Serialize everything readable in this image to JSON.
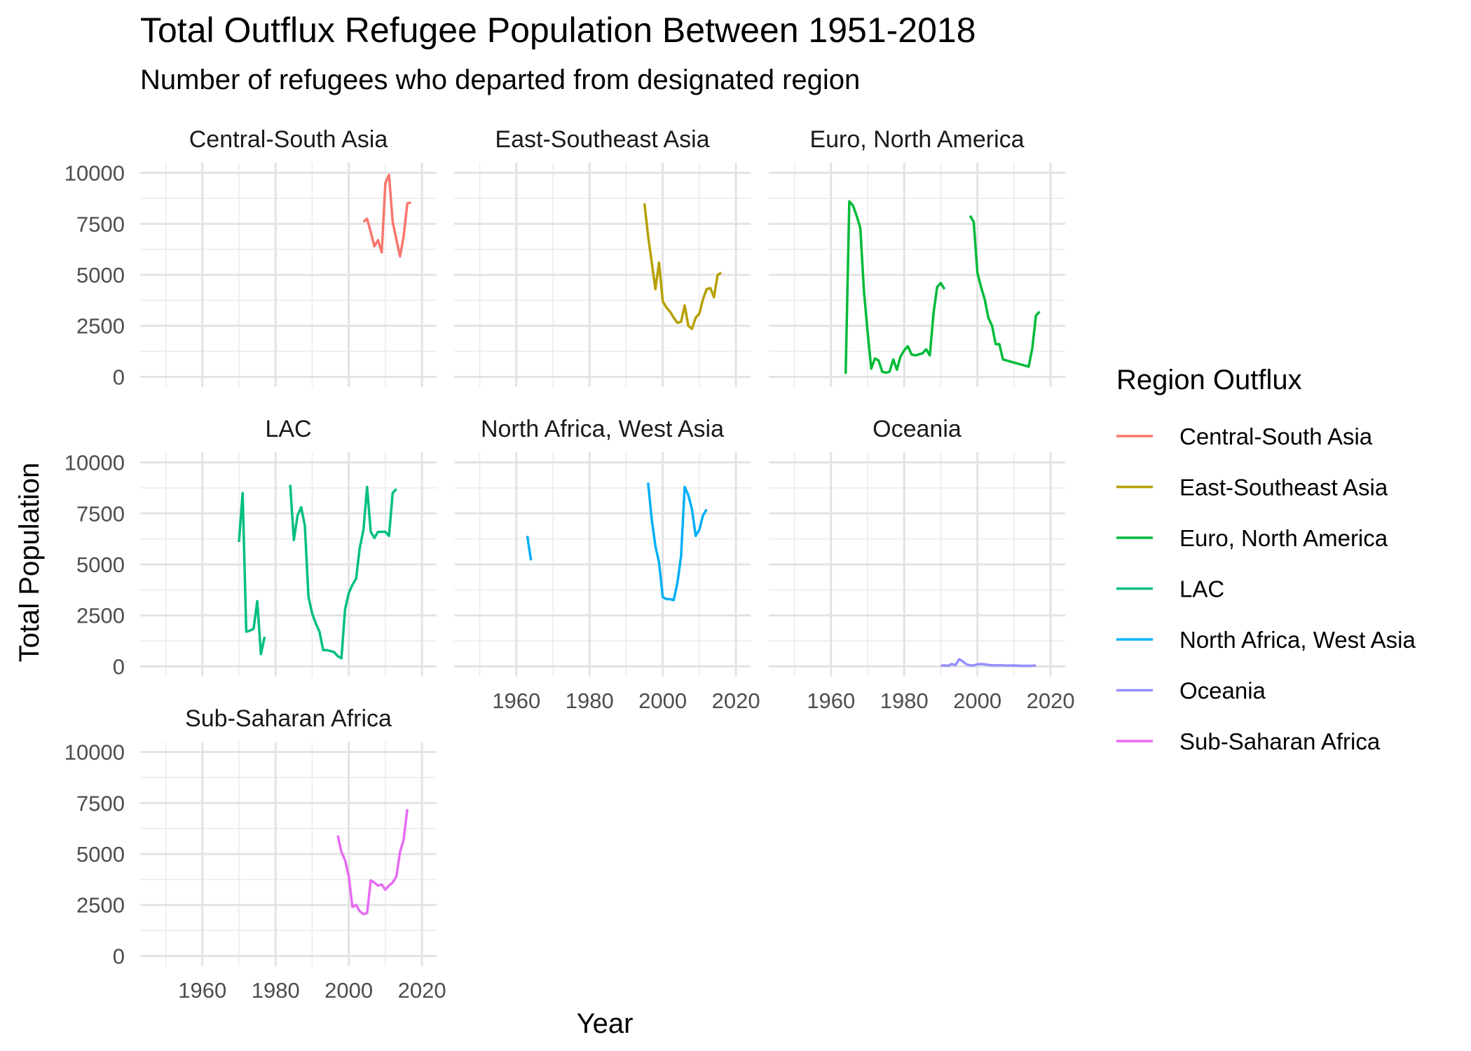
{
  "chart_data": {
    "type": "line",
    "title": "Total Outflux Refugee Population Between 1951-2018",
    "subtitle": "Number of refugees who departed from designated region",
    "xlabel": "Year",
    "ylabel": "Total Population",
    "xlim": [
      1943,
      2024
    ],
    "ylim": [
      -500,
      10500
    ],
    "x_ticks": [
      1960,
      1980,
      2000,
      2020
    ],
    "y_ticks": [
      0,
      2500,
      5000,
      7500,
      10000
    ],
    "grid": true,
    "legend": {
      "title": "Region Outflux",
      "position": "right"
    },
    "facets": [
      "Central-South Asia",
      "East-Southeast Asia",
      "Euro, North America",
      "LAC",
      "North Africa, West Asia",
      "Oceania",
      "Sub-Saharan Africa"
    ],
    "series": [
      {
        "name": "Central-South Asia",
        "color": "#F8766D",
        "segments": [
          [
            [
              2004,
              7600
            ],
            [
              2005,
              7750
            ],
            [
              2006,
              7100
            ],
            [
              2007,
              6400
            ],
            [
              2008,
              6700
            ],
            [
              2009,
              6100
            ],
            [
              2010,
              9500
            ],
            [
              2011,
              9900
            ],
            [
              2012,
              7600
            ],
            [
              2014,
              5900
            ],
            [
              2015,
              6900
            ],
            [
              2016,
              8500
            ],
            [
              2017,
              8550
            ]
          ]
        ]
      },
      {
        "name": "East-Southeast Asia",
        "color": "#B79F00",
        "segments": [
          [
            [
              1995,
              8500
            ],
            [
              1996,
              6900
            ],
            [
              1997,
              5600
            ],
            [
              1998,
              4300
            ],
            [
              1999,
              5600
            ],
            [
              2000,
              3700
            ],
            [
              2001,
              3400
            ],
            [
              2002,
              3200
            ],
            [
              2003,
              2900
            ],
            [
              2004,
              2650
            ],
            [
              2005,
              2700
            ],
            [
              2006,
              3500
            ],
            [
              2007,
              2500
            ],
            [
              2008,
              2350
            ],
            [
              2009,
              2900
            ],
            [
              2010,
              3100
            ],
            [
              2011,
              3800
            ],
            [
              2012,
              4300
            ],
            [
              2013,
              4350
            ],
            [
              2014,
              3900
            ],
            [
              2015,
              5000
            ],
            [
              2016,
              5100
            ]
          ]
        ]
      },
      {
        "name": "Euro, North America",
        "color": "#00BA38",
        "segments": [
          [
            [
              1964,
              150
            ],
            [
              1965,
              8600
            ],
            [
              1966,
              8400
            ],
            [
              1967,
              7900
            ],
            [
              1968,
              7300
            ],
            [
              1969,
              4200
            ],
            [
              1970,
              2200
            ],
            [
              1971,
              400
            ],
            [
              1972,
              900
            ],
            [
              1973,
              800
            ],
            [
              1974,
              250
            ],
            [
              1975,
              200
            ],
            [
              1976,
              250
            ],
            [
              1977,
              850
            ],
            [
              1978,
              350
            ],
            [
              1979,
              1000
            ],
            [
              1980,
              1300
            ],
            [
              1981,
              1500
            ],
            [
              1982,
              1100
            ],
            [
              1983,
              1050
            ],
            [
              1984,
              1100
            ],
            [
              1985,
              1150
            ],
            [
              1986,
              1350
            ],
            [
              1987,
              1050
            ],
            [
              1988,
              3100
            ],
            [
              1989,
              4400
            ],
            [
              1990,
              4600
            ],
            [
              1991,
              4300
            ]
          ],
          [
            [
              1998,
              7900
            ],
            [
              1999,
              7600
            ],
            [
              2000,
              5100
            ],
            [
              2001,
              4400
            ],
            [
              2002,
              3800
            ],
            [
              2003,
              2900
            ],
            [
              2004,
              2500
            ],
            [
              2005,
              1600
            ],
            [
              2006,
              1600
            ],
            [
              2007,
              850
            ],
            [
              2008,
              800
            ],
            [
              2014,
              500
            ],
            [
              2015,
              1400
            ],
            [
              2016,
              3000
            ],
            [
              2017,
              3200
            ]
          ]
        ]
      },
      {
        "name": "LAC",
        "color": "#00BF7D",
        "segments": [
          [
            [
              1970,
              6100
            ],
            [
              1971,
              8500
            ],
            [
              1972,
              1700
            ],
            [
              1973,
              1750
            ],
            [
              1974,
              1850
            ],
            [
              1975,
              3200
            ],
            [
              1976,
              600
            ],
            [
              1977,
              1450
            ]
          ],
          [
            [
              1984,
              8900
            ],
            [
              1985,
              6200
            ],
            [
              1986,
              7400
            ],
            [
              1987,
              7800
            ],
            [
              1988,
              6900
            ],
            [
              1989,
              3400
            ],
            [
              1990,
              2600
            ],
            [
              1991,
              2100
            ],
            [
              1992,
              1700
            ],
            [
              1993,
              800
            ],
            [
              1994,
              800
            ],
            [
              1995,
              750
            ],
            [
              1996,
              700
            ],
            [
              1997,
              500
            ],
            [
              1998,
              400
            ],
            [
              1999,
              2800
            ],
            [
              2000,
              3600
            ],
            [
              2001,
              4000
            ],
            [
              2002,
              4300
            ],
            [
              2003,
              5800
            ],
            [
              2004,
              6700
            ],
            [
              2005,
              8800
            ],
            [
              2006,
              6600
            ],
            [
              2007,
              6300
            ],
            [
              2008,
              6600
            ],
            [
              2009,
              6600
            ],
            [
              2010,
              6600
            ],
            [
              2011,
              6400
            ],
            [
              2012,
              8500
            ],
            [
              2013,
              8700
            ]
          ]
        ]
      },
      {
        "name": "North Africa, West Asia",
        "color": "#00B0F6",
        "segments": [
          [
            [
              1963,
              6400
            ],
            [
              1964,
              5200
            ]
          ],
          [
            [
              1996,
              9000
            ],
            [
              1997,
              7200
            ],
            [
              1998,
              5900
            ],
            [
              1999,
              5100
            ],
            [
              2000,
              3400
            ],
            [
              2001,
              3300
            ],
            [
              2002,
              3300
            ],
            [
              2003,
              3250
            ],
            [
              2004,
              4100
            ],
            [
              2005,
              5400
            ],
            [
              2006,
              8800
            ],
            [
              2007,
              8400
            ],
            [
              2008,
              7700
            ],
            [
              2009,
              6400
            ],
            [
              2010,
              6700
            ],
            [
              2011,
              7400
            ],
            [
              2012,
              7700
            ]
          ]
        ]
      },
      {
        "name": "Oceania",
        "color": "#9590FF",
        "segments": [
          [
            [
              1990,
              30
            ],
            [
              1991,
              50
            ],
            [
              1992,
              30
            ],
            [
              1993,
              120
            ],
            [
              1994,
              60
            ],
            [
              1995,
              350
            ],
            [
              1996,
              250
            ],
            [
              1997,
              100
            ],
            [
              1998,
              50
            ],
            [
              1999,
              50
            ],
            [
              2000,
              100
            ],
            [
              2001,
              120
            ],
            [
              2002,
              100
            ],
            [
              2004,
              50
            ],
            [
              2006,
              60
            ],
            [
              2008,
              40
            ],
            [
              2010,
              50
            ],
            [
              2012,
              30
            ],
            [
              2014,
              30
            ],
            [
              2016,
              40
            ]
          ]
        ]
      },
      {
        "name": "Sub-Saharan Africa",
        "color": "#E76BF3",
        "segments": [
          [
            [
              1997,
              5900
            ],
            [
              1998,
              5100
            ],
            [
              1999,
              4700
            ],
            [
              2000,
              3900
            ],
            [
              2001,
              2400
            ],
            [
              2002,
              2500
            ],
            [
              2003,
              2200
            ],
            [
              2004,
              2050
            ],
            [
              2005,
              2100
            ],
            [
              2006,
              3700
            ],
            [
              2007,
              3600
            ],
            [
              2008,
              3450
            ],
            [
              2009,
              3500
            ],
            [
              2010,
              3250
            ],
            [
              2011,
              3450
            ],
            [
              2012,
              3600
            ],
            [
              2013,
              3900
            ],
            [
              2014,
              5100
            ],
            [
              2015,
              5700
            ],
            [
              2016,
              7200
            ]
          ]
        ]
      }
    ]
  }
}
